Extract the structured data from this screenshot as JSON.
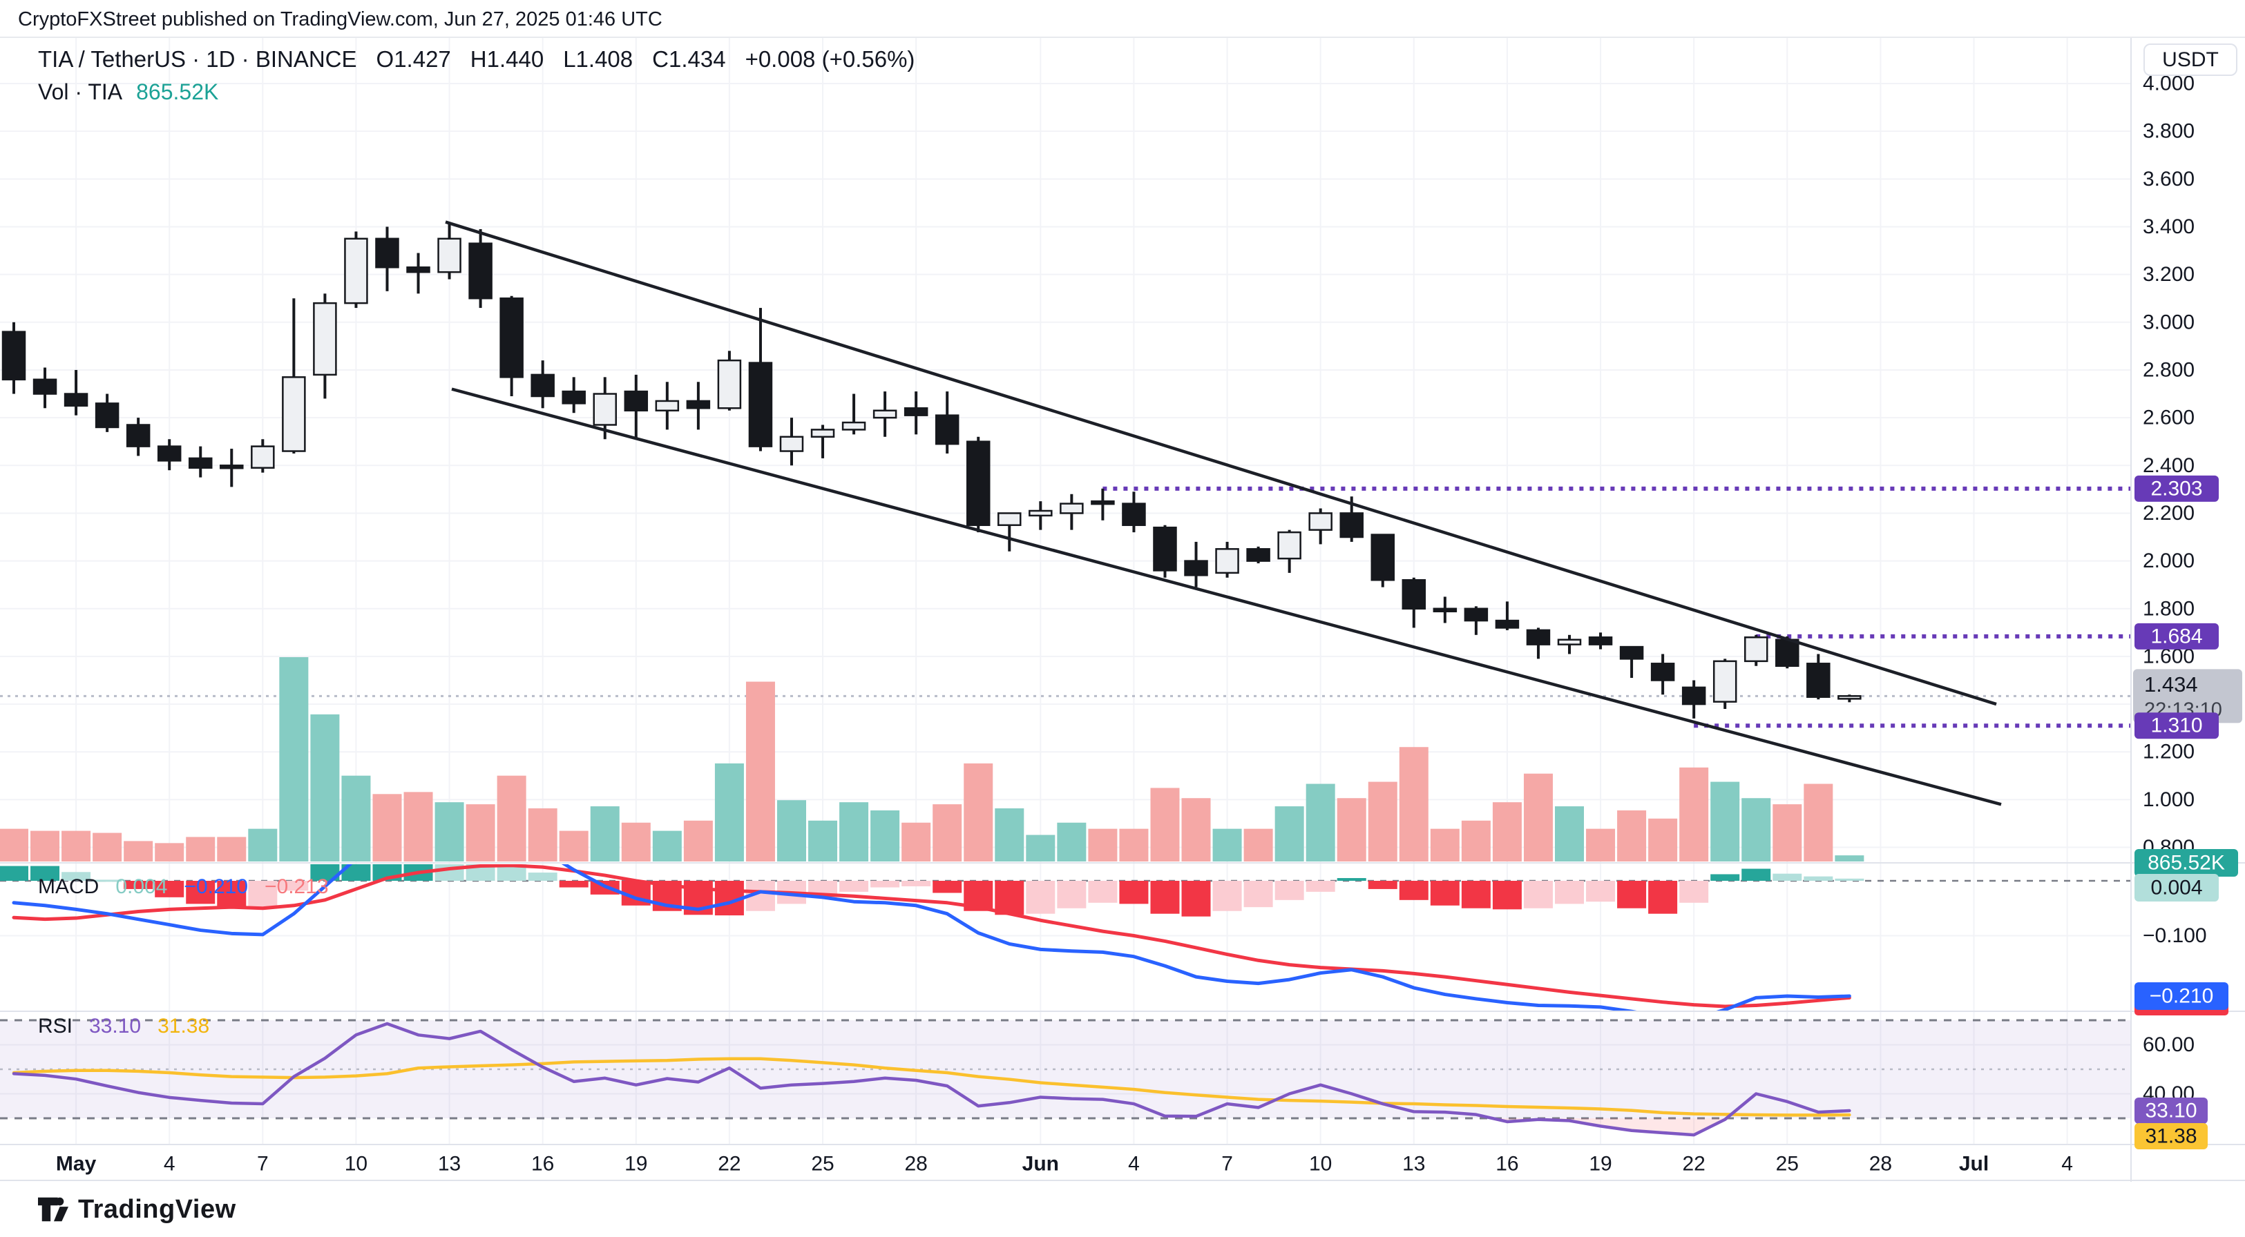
{
  "header": {
    "published_line": "CryptoFXStreet published on TradingView.com, Jun 27, 2025 01:46 UTC"
  },
  "legend": {
    "symbol": "TIA / TetherUS · 1D · BINANCE",
    "open": "O1.427",
    "high": "H1.440",
    "low": "L1.408",
    "close": "C1.434",
    "change": "+0.008 (+0.56%)",
    "volume_label": "Vol · TIA",
    "volume_value": "865.52K"
  },
  "indicators": {
    "macd": {
      "title": "MACD",
      "hist_value": "0.004",
      "line_value": "−0.210",
      "signal_value": "−0.213"
    },
    "rsi": {
      "title": "RSI",
      "value": "33.10",
      "ma_value": "31.38"
    }
  },
  "price_axis": {
    "currency_button": "USDT",
    "labels": [
      {
        "text": "4.000",
        "price": 4.0
      },
      {
        "text": "3.800",
        "price": 3.8
      },
      {
        "text": "3.600",
        "price": 3.6
      },
      {
        "text": "3.400",
        "price": 3.4
      },
      {
        "text": "3.200",
        "price": 3.2
      },
      {
        "text": "3.000",
        "price": 3.0
      },
      {
        "text": "2.800",
        "price": 2.8
      },
      {
        "text": "2.600",
        "price": 2.6
      },
      {
        "text": "2.400",
        "price": 2.4
      },
      {
        "text": "2.200",
        "price": 2.2
      },
      {
        "text": "2.000",
        "price": 2.0
      },
      {
        "text": "1.800",
        "price": 1.8
      },
      {
        "text": "1.600",
        "price": 1.6
      },
      {
        "text": "1.200",
        "price": 1.2
      },
      {
        "text": "1.000",
        "price": 1.0
      },
      {
        "text": "0.800",
        "price": 0.8
      }
    ],
    "level_badges": [
      {
        "text": "2.303",
        "price": 2.303
      },
      {
        "text": "1.684",
        "price": 1.684
      },
      {
        "text": "1.310",
        "price": 1.31
      }
    ],
    "last_price_badge": {
      "price_text": "1.434",
      "countdown": "22:13:10"
    },
    "volume_badge": "865.52K",
    "macd_hist_badge": "0.004",
    "macd_line_badge": "−0.210",
    "macd_axis_label": "−0.100",
    "rsi_axis_labels": [
      "60.00",
      "40.00"
    ],
    "rsi_badge": "33.10",
    "rsi_ma_badge": "31.38"
  },
  "time_axis": {
    "ticks": [
      {
        "label": "May",
        "day": 2,
        "bold": true
      },
      {
        "label": "4",
        "day": 5
      },
      {
        "label": "7",
        "day": 8
      },
      {
        "label": "10",
        "day": 11
      },
      {
        "label": "13",
        "day": 14
      },
      {
        "label": "16",
        "day": 17
      },
      {
        "label": "19",
        "day": 20
      },
      {
        "label": "22",
        "day": 23
      },
      {
        "label": "25",
        "day": 26
      },
      {
        "label": "28",
        "day": 29
      },
      {
        "label": "Jun",
        "day": 33,
        "bold": true
      },
      {
        "label": "4",
        "day": 36
      },
      {
        "label": "7",
        "day": 39
      },
      {
        "label": "10",
        "day": 42
      },
      {
        "label": "13",
        "day": 45
      },
      {
        "label": "16",
        "day": 48
      },
      {
        "label": "19",
        "day": 51
      },
      {
        "label": "22",
        "day": 54
      },
      {
        "label": "25",
        "day": 57
      },
      {
        "label": "28",
        "day": 60
      },
      {
        "label": "Jul",
        "day": 63,
        "bold": true
      },
      {
        "label": "4",
        "day": 66
      }
    ]
  },
  "footer": {
    "brand": "TradingView"
  },
  "colors": {
    "up_body": "#eef0f3",
    "down_body": "#16181d",
    "outline": "#16181d",
    "vol_up": "#85ccc3",
    "vol_down": "#f5a8a6",
    "hist_pos_strong": "#26a69a",
    "hist_pos_weak": "#b2dfdb",
    "hist_neg_strong": "#f23645",
    "hist_neg_weak": "#fbccd2",
    "macd_line": "#2962ff",
    "signal_line": "#f23645",
    "rsi_line": "#7e57c2",
    "rsi_ma_line": "#fbc02d",
    "level_purple": "#673ab7",
    "badge_gray": "#c3c6d0",
    "badge_blue": "#2962ff",
    "badge_teal": "#26a69a",
    "badge_teal_light": "#b2dfdb",
    "badge_yellow": "#fbc533",
    "grid": "#f2f3f7",
    "separator": "#e0e3eb",
    "channel": "#1c1f27",
    "last_price_line": "#b8bcc9",
    "dash_level": "#787b86"
  },
  "chart_data": {
    "type": "candlestick",
    "title": "TIA / TetherUS · 1D · BINANCE",
    "ylabel": "USDT",
    "ylim": [
      0.74,
      4.19
    ],
    "grid": true,
    "dates": [
      "Apr 29",
      "Apr 30",
      "May 1",
      "May 2",
      "May 3",
      "May 4",
      "May 5",
      "May 6",
      "May 7",
      "May 8",
      "May 9",
      "May 10",
      "May 11",
      "May 12",
      "May 13",
      "May 14",
      "May 15",
      "May 16",
      "May 17",
      "May 18",
      "May 19",
      "May 20",
      "May 21",
      "May 22",
      "May 23",
      "May 24",
      "May 25",
      "May 26",
      "May 27",
      "May 28",
      "May 29",
      "May 30",
      "May 31",
      "Jun 1",
      "Jun 2",
      "Jun 3",
      "Jun 4",
      "Jun 5",
      "Jun 6",
      "Jun 7",
      "Jun 8",
      "Jun 9",
      "Jun 10",
      "Jun 11",
      "Jun 12",
      "Jun 13",
      "Jun 14",
      "Jun 15",
      "Jun 16",
      "Jun 17",
      "Jun 18",
      "Jun 19",
      "Jun 20",
      "Jun 21",
      "Jun 22",
      "Jun 23",
      "Jun 24",
      "Jun 25",
      "Jun 26",
      "Jun 27"
    ],
    "candles_ohlc": [
      [
        2.96,
        3.0,
        2.7,
        2.76
      ],
      [
        2.76,
        2.81,
        2.64,
        2.7
      ],
      [
        2.7,
        2.8,
        2.61,
        2.65
      ],
      [
        2.66,
        2.7,
        2.54,
        2.56
      ],
      [
        2.57,
        2.6,
        2.44,
        2.48
      ],
      [
        2.48,
        2.51,
        2.38,
        2.42
      ],
      [
        2.43,
        2.48,
        2.35,
        2.39
      ],
      [
        2.4,
        2.47,
        2.31,
        2.39
      ],
      [
        2.39,
        2.51,
        2.37,
        2.48
      ],
      [
        2.46,
        3.1,
        2.45,
        2.77
      ],
      [
        2.78,
        3.12,
        2.68,
        3.08
      ],
      [
        3.08,
        3.38,
        3.06,
        3.35
      ],
      [
        3.35,
        3.4,
        3.13,
        3.23
      ],
      [
        3.23,
        3.29,
        3.12,
        3.21
      ],
      [
        3.21,
        3.42,
        3.18,
        3.35
      ],
      [
        3.33,
        3.39,
        3.06,
        3.1
      ],
      [
        3.1,
        3.11,
        2.69,
        2.77
      ],
      [
        2.78,
        2.84,
        2.64,
        2.69
      ],
      [
        2.71,
        2.77,
        2.62,
        2.66
      ],
      [
        2.57,
        2.77,
        2.51,
        2.7
      ],
      [
        2.71,
        2.78,
        2.51,
        2.63
      ],
      [
        2.63,
        2.75,
        2.55,
        2.67
      ],
      [
        2.67,
        2.75,
        2.55,
        2.64
      ],
      [
        2.64,
        2.88,
        2.63,
        2.84
      ],
      [
        2.83,
        3.06,
        2.46,
        2.48
      ],
      [
        2.46,
        2.6,
        2.4,
        2.52
      ],
      [
        2.52,
        2.57,
        2.43,
        2.55
      ],
      [
        2.55,
        2.7,
        2.53,
        2.58
      ],
      [
        2.6,
        2.71,
        2.52,
        2.63
      ],
      [
        2.64,
        2.71,
        2.53,
        2.61
      ],
      [
        2.61,
        2.71,
        2.45,
        2.49
      ],
      [
        2.5,
        2.52,
        2.12,
        2.15
      ],
      [
        2.15,
        2.2,
        2.04,
        2.2
      ],
      [
        2.19,
        2.25,
        2.13,
        2.21
      ],
      [
        2.2,
        2.28,
        2.13,
        2.24
      ],
      [
        2.25,
        2.303,
        2.17,
        2.24
      ],
      [
        2.24,
        2.29,
        2.12,
        2.15
      ],
      [
        2.14,
        2.15,
        1.93,
        1.96
      ],
      [
        2.0,
        2.08,
        1.89,
        1.94
      ],
      [
        1.95,
        2.08,
        1.93,
        2.05
      ],
      [
        2.05,
        2.06,
        1.99,
        2.0
      ],
      [
        2.01,
        2.13,
        1.95,
        2.12
      ],
      [
        2.13,
        2.22,
        2.07,
        2.2
      ],
      [
        2.2,
        2.27,
        2.08,
        2.1
      ],
      [
        2.11,
        2.11,
        1.89,
        1.92
      ],
      [
        1.92,
        1.93,
        1.72,
        1.8
      ],
      [
        1.8,
        1.85,
        1.74,
        1.79
      ],
      [
        1.8,
        1.81,
        1.69,
        1.75
      ],
      [
        1.75,
        1.83,
        1.71,
        1.72
      ],
      [
        1.71,
        1.72,
        1.59,
        1.65
      ],
      [
        1.65,
        1.69,
        1.61,
        1.67
      ],
      [
        1.68,
        1.7,
        1.63,
        1.65
      ],
      [
        1.64,
        1.64,
        1.51,
        1.59
      ],
      [
        1.57,
        1.61,
        1.44,
        1.5
      ],
      [
        1.47,
        1.5,
        1.34,
        1.4
      ],
      [
        1.41,
        1.59,
        1.38,
        1.58
      ],
      [
        1.58,
        1.69,
        1.56,
        1.68
      ],
      [
        1.67,
        1.684,
        1.55,
        1.56
      ],
      [
        1.57,
        1.61,
        1.42,
        1.43
      ],
      [
        1.427,
        1.44,
        1.408,
        1.434
      ]
    ],
    "volume_rel_max100": [
      16,
      15,
      15,
      14,
      10,
      9,
      12,
      12,
      16,
      100,
      72,
      42,
      33,
      34,
      29,
      28,
      42,
      26,
      15,
      27,
      19,
      15,
      20,
      48,
      88,
      30,
      20,
      29,
      25,
      19,
      28,
      48,
      26,
      13,
      19,
      16,
      16,
      36,
      31,
      16,
      16,
      27,
      38,
      31,
      39,
      56,
      16,
      20,
      29,
      43,
      27,
      16,
      25,
      21,
      46,
      39,
      31,
      28,
      38,
      3
    ],
    "latest_volume_text": "865.52K",
    "macd": {
      "hist": [
        0.027,
        0.027,
        0.016,
        0.002,
        -0.015,
        -0.03,
        -0.042,
        -0.05,
        -0.048,
        -0.018,
        0.05,
        0.1,
        0.125,
        0.13,
        0.12,
        0.095,
        0.045,
        0.015,
        -0.012,
        -0.025,
        -0.045,
        -0.055,
        -0.062,
        -0.063,
        -0.055,
        -0.042,
        -0.03,
        -0.02,
        -0.012,
        -0.01,
        -0.022,
        -0.055,
        -0.062,
        -0.06,
        -0.05,
        -0.04,
        -0.042,
        -0.06,
        -0.065,
        -0.055,
        -0.048,
        -0.035,
        -0.02,
        0.005,
        -0.015,
        -0.035,
        -0.045,
        -0.05,
        -0.052,
        -0.05,
        -0.042,
        -0.038,
        -0.05,
        -0.06,
        -0.04,
        0.012,
        0.022,
        0.013,
        0.008,
        0.004
      ],
      "macd": [
        -0.04,
        -0.045,
        -0.052,
        -0.06,
        -0.07,
        -0.08,
        -0.09,
        -0.096,
        -0.098,
        -0.06,
        -0.01,
        0.04,
        0.09,
        0.12,
        0.135,
        0.13,
        0.095,
        0.055,
        0.02,
        -0.01,
        -0.032,
        -0.045,
        -0.052,
        -0.04,
        -0.02,
        -0.025,
        -0.03,
        -0.038,
        -0.04,
        -0.045,
        -0.06,
        -0.095,
        -0.115,
        -0.125,
        -0.128,
        -0.13,
        -0.138,
        -0.155,
        -0.175,
        -0.183,
        -0.187,
        -0.18,
        -0.168,
        -0.162,
        -0.175,
        -0.195,
        -0.207,
        -0.215,
        -0.222,
        -0.227,
        -0.228,
        -0.23,
        -0.238,
        -0.248,
        -0.252,
        -0.235,
        -0.213,
        -0.21,
        -0.212,
        -0.21
      ],
      "signal": [
        -0.067,
        -0.07,
        -0.068,
        -0.062,
        -0.056,
        -0.052,
        -0.05,
        -0.048,
        -0.05,
        -0.045,
        -0.035,
        -0.015,
        0.005,
        0.015,
        0.022,
        0.027,
        0.028,
        0.025,
        0.018,
        0.01,
        0.0,
        -0.008,
        -0.014,
        -0.018,
        -0.02,
        -0.022,
        -0.025,
        -0.028,
        -0.032,
        -0.036,
        -0.04,
        -0.048,
        -0.06,
        -0.072,
        -0.082,
        -0.092,
        -0.1,
        -0.11,
        -0.122,
        -0.134,
        -0.145,
        -0.153,
        -0.158,
        -0.161,
        -0.164,
        -0.169,
        -0.175,
        -0.182,
        -0.189,
        -0.196,
        -0.203,
        -0.209,
        -0.215,
        -0.221,
        -0.226,
        -0.229,
        -0.227,
        -0.223,
        -0.218,
        -0.213
      ]
    },
    "rsi": {
      "levels": [
        70,
        50,
        30
      ],
      "rsi": [
        48.2,
        47.5,
        46,
        43.2,
        40.5,
        38.5,
        37.3,
        36.2,
        35.9,
        47,
        54.5,
        64,
        68.6,
        64,
        62.5,
        65.5,
        58,
        50.9,
        45,
        46.4,
        43.6,
        46.2,
        44.8,
        50.5,
        42.3,
        43.6,
        44.2,
        45,
        46.4,
        45.5,
        43.2,
        35,
        36.4,
        38.6,
        38,
        37.7,
        35.9,
        30.9,
        30.8,
        35.9,
        34.4,
        40,
        43.6,
        40,
        35.9,
        32.7,
        32.5,
        31.5,
        28.6,
        29.5,
        29,
        26.8,
        25,
        24.1,
        23.2,
        29.5,
        40,
        36.8,
        32.5,
        33.1
      ],
      "ma": [
        48.6,
        49.2,
        49.5,
        49.5,
        49.2,
        48.6,
        47.7,
        47,
        46.8,
        46.6,
        46.8,
        47.3,
        48.2,
        50.5,
        51,
        51.4,
        51.8,
        52.3,
        53,
        53.2,
        53.4,
        53.6,
        54.1,
        54.3,
        54.3,
        53.6,
        52.7,
        51.8,
        50.5,
        49.5,
        48.6,
        47,
        45.9,
        44.5,
        43.6,
        42.7,
        41.8,
        40.5,
        39.5,
        38.6,
        37.7,
        37.3,
        37,
        36.6,
        36.1,
        35.9,
        35.5,
        35.2,
        34.8,
        34.5,
        34.2,
        33.8,
        33.2,
        32.3,
        31.8,
        31.6,
        31.4,
        31.3,
        31.3,
        31.38
      ]
    },
    "horizontal_levels": [
      {
        "price": 2.303,
        "from_index": 35
      },
      {
        "price": 1.684,
        "from_index": 56
      },
      {
        "price": 1.31,
        "from_index": 54
      }
    ],
    "last_price": 1.434,
    "channel": {
      "upper": {
        "x1": 645,
        "p1": 3.42,
        "x2": 2890,
        "p2": 1.4
      },
      "lower": {
        "x1": 654,
        "p1": 2.72,
        "x2": 2897,
        "p2": 0.98
      }
    }
  }
}
